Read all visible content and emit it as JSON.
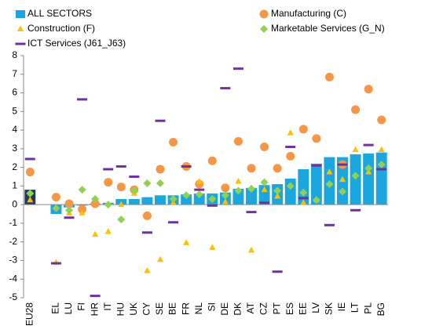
{
  "chart_data": {
    "type": "bar",
    "categories": [
      "EU28",
      null,
      "EL",
      "LU",
      "FI",
      "HR",
      "IT",
      "HU",
      "UK",
      "CY",
      "SE",
      "BE",
      "FR",
      "NL",
      "SI",
      "DE",
      "DK",
      "AT",
      "CZ",
      "PT",
      "ES",
      "EE",
      "LV",
      "SK",
      "IE",
      "LT",
      "PL",
      "BG"
    ],
    "series": [
      {
        "name": "ALL SECTORS",
        "marker": "bar",
        "color": "#1ba6e0",
        "point_colors": [
          "#1f3a5a",
          null,
          "#1ba6e0",
          "#1ba6e0",
          "#1ba6e0",
          "#1ba6e0",
          "#1ba6e0",
          "#1ba6e0",
          "#1ba6e0",
          "#1ba6e0",
          "#1ba6e0",
          "#1ba6e0",
          "#1ba6e0",
          "#1ba6e0",
          "#1ba6e0",
          "#1ba6e0",
          "#1ba6e0",
          "#1ba6e0",
          "#1ba6e0",
          "#1ba6e0",
          "#1ba6e0",
          "#1ba6e0",
          "#1ba6e0",
          "#1ba6e0",
          "#1ba6e0",
          "#1ba6e0",
          "#1ba6e0",
          "#1ba6e0"
        ],
        "values": [
          0.8,
          null,
          -0.5,
          -0.15,
          -0.05,
          0.05,
          0.1,
          0.3,
          0.3,
          0.4,
          0.5,
          0.5,
          0.55,
          0.6,
          0.6,
          0.65,
          0.85,
          0.9,
          1.05,
          1.1,
          1.4,
          1.9,
          2.2,
          2.55,
          2.55,
          2.7,
          2.75,
          2.8
        ]
      },
      {
        "name": "Manufacturing (C)",
        "marker": "circle",
        "color": "#f79646",
        "values": [
          1.75,
          null,
          0.4,
          0.05,
          -0.25,
          0.05,
          1.2,
          0.95,
          0.8,
          -0.6,
          1.9,
          3.35,
          2.05,
          1.1,
          2.35,
          0.9,
          3.4,
          1.95,
          3.1,
          1.95,
          2.6,
          4.05,
          3.55,
          6.85,
          2.15,
          5.1,
          6.2,
          4.55
        ]
      },
      {
        "name": "Construction (F)",
        "marker": "triangle",
        "color": "#ffc000",
        "values": [
          0.25,
          null,
          -3.1,
          -0.45,
          -0.45,
          -1.6,
          -1.45,
          0.0,
          0.6,
          -3.55,
          -2.95,
          0.1,
          -2.05,
          1.25,
          -2.3,
          0.15,
          1.25,
          -2.45,
          0.8,
          0.45,
          3.85,
          0.1,
          0.25,
          1.75,
          1.35,
          2.95,
          1.75,
          2.95
        ]
      },
      {
        "name": "Marketable Services (G_N)",
        "marker": "diamond",
        "color": "#92d050",
        "values": [
          0.6,
          null,
          -0.2,
          -0.3,
          0.8,
          0.3,
          0.0,
          -0.8,
          0.75,
          1.15,
          1.15,
          0.3,
          0.5,
          0.55,
          0.3,
          0.5,
          0.75,
          0.85,
          1.2,
          0.75,
          1.0,
          0.65,
          0.25,
          1.1,
          0.7,
          1.55,
          1.95,
          2.15
        ]
      },
      {
        "name": "ICT Services (J61_J63)",
        "marker": "dash",
        "color": "#7030a0",
        "values": [
          2.45,
          null,
          -3.15,
          -0.7,
          5.65,
          -4.9,
          1.9,
          2.05,
          1.5,
          -1.5,
          4.5,
          -0.95,
          2.05,
          0.8,
          -0.05,
          6.25,
          7.3,
          -0.4,
          0.1,
          -3.6,
          3.1,
          0.35,
          2.1,
          -1.1,
          2.15,
          -0.3,
          3.2,
          1.9
        ]
      }
    ],
    "ylim": [
      -5,
      8
    ],
    "yticks": [
      -5,
      -4,
      -3,
      -2,
      -1,
      0,
      1,
      2,
      3,
      4,
      5,
      6,
      7,
      8
    ],
    "grid": false
  }
}
